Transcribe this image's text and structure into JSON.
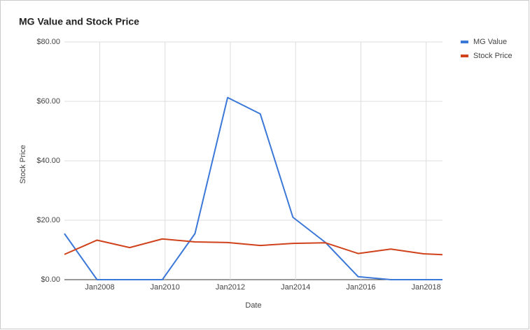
{
  "chart_data": {
    "type": "line",
    "title": "MG Value and Stock Price",
    "x_label": "Date",
    "y_label": "Stock Price",
    "x": [
      "2006-12",
      "2007-12",
      "2008-12",
      "2009-12",
      "2010-12",
      "2011-12",
      "2012-12",
      "2013-12",
      "2014-12",
      "2015-12",
      "2016-12",
      "2017-12",
      "2018-07"
    ],
    "series": [
      {
        "name": "MG Value",
        "color": "#3c78d8",
        "values": [
          15.5,
          0,
          0,
          0,
          15.5,
          61.3,
          55.8,
          21,
          12.5,
          1,
          0,
          0,
          0
        ]
      },
      {
        "name": "Stock Price",
        "color": "#d0421b",
        "values": [
          8.5,
          13.3,
          10.8,
          13.7,
          12.7,
          12.5,
          11.5,
          12.2,
          12.4,
          8.8,
          10.3,
          8.7,
          8.4
        ]
      }
    ],
    "xlim": [
      "2006-12",
      "2018-07"
    ],
    "xticks": [
      {
        "value": "2008-01",
        "label": "Jan2008"
      },
      {
        "value": "2010-01",
        "label": "Jan2010"
      },
      {
        "value": "2012-01",
        "label": "Jan2012"
      },
      {
        "value": "2014-01",
        "label": "Jan2014"
      },
      {
        "value": "2016-01",
        "label": "Jan2016"
      },
      {
        "value": "2018-01",
        "label": "Jan2018"
      }
    ],
    "ylim": [
      0,
      80
    ],
    "yticks": [
      {
        "value": 0,
        "label": "$0.00"
      },
      {
        "value": 20,
        "label": "$20.00"
      },
      {
        "value": 40,
        "label": "$40.00"
      },
      {
        "value": 60,
        "label": "$60.00"
      },
      {
        "value": 80,
        "label": "$80.00"
      }
    ],
    "grid": true,
    "legend": "right"
  }
}
